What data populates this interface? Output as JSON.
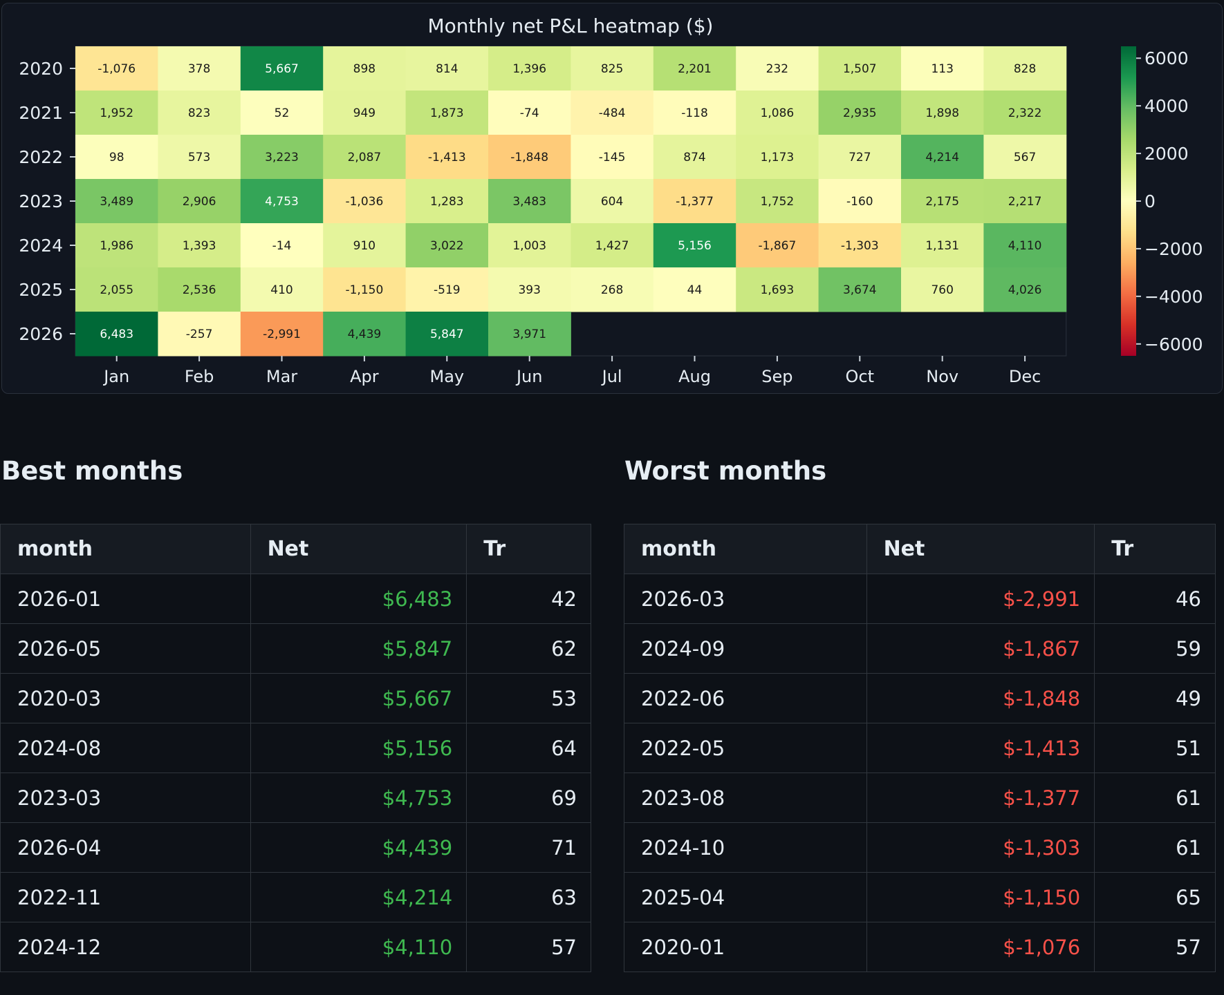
{
  "chart_data": {
    "type": "heatmap",
    "title": "Monthly net P&L heatmap ($)",
    "x_labels": [
      "Jan",
      "Feb",
      "Mar",
      "Apr",
      "May",
      "Jun",
      "Jul",
      "Aug",
      "Sep",
      "Oct",
      "Nov",
      "Dec"
    ],
    "y_labels": [
      "2020",
      "2021",
      "2022",
      "2023",
      "2024",
      "2025",
      "2026"
    ],
    "values": [
      [
        -1076,
        378,
        5667,
        898,
        814,
        1396,
        825,
        2201,
        232,
        1507,
        113,
        828
      ],
      [
        1952,
        823,
        52,
        949,
        1873,
        -74,
        -484,
        -118,
        1086,
        2935,
        1898,
        2322
      ],
      [
        98,
        573,
        3223,
        2087,
        -1413,
        -1848,
        -145,
        874,
        1173,
        727,
        4214,
        567
      ],
      [
        3489,
        2906,
        4753,
        -1036,
        1283,
        3483,
        604,
        -1377,
        1752,
        -160,
        2175,
        2217
      ],
      [
        1986,
        1393,
        -14,
        910,
        3022,
        1003,
        1427,
        5156,
        -1867,
        -1303,
        1131,
        4110
      ],
      [
        2055,
        2536,
        410,
        -1150,
        -519,
        393,
        268,
        44,
        1693,
        3674,
        760,
        4026
      ],
      [
        6483,
        -257,
        -2991,
        4439,
        5847,
        3971,
        null,
        null,
        null,
        null,
        null,
        null
      ]
    ],
    "value_labels": [
      [
        "-1,076",
        "378",
        "5,667",
        "898",
        "814",
        "1,396",
        "825",
        "2,201",
        "232",
        "1,507",
        "113",
        "828"
      ],
      [
        "1,952",
        "823",
        "52",
        "949",
        "1,873",
        "-74",
        "-484",
        "-118",
        "1,086",
        "2,935",
        "1,898",
        "2,322"
      ],
      [
        "98",
        "573",
        "3,223",
        "2,087",
        "-1,413",
        "-1,848",
        "-145",
        "874",
        "1,173",
        "727",
        "4,214",
        "567"
      ],
      [
        "3,489",
        "2,906",
        "4,753",
        "-1,036",
        "1,283",
        "3,483",
        "604",
        "-1,377",
        "1,752",
        "-160",
        "2,175",
        "2,217"
      ],
      [
        "1,986",
        "1,393",
        "-14",
        "910",
        "3,022",
        "1,003",
        "1,427",
        "5,156",
        "-1,867",
        "-1,303",
        "1,131",
        "4,110"
      ],
      [
        "2,055",
        "2,536",
        "410",
        "-1,150",
        "-519",
        "393",
        "268",
        "44",
        "1,693",
        "3,674",
        "760",
        "4,026"
      ],
      [
        "6,483",
        "-257",
        "-2,991",
        "4,439",
        "5,847",
        "3,971",
        "",
        "",
        "",
        "",
        "",
        ""
      ]
    ],
    "colorscale": "RdYlGn",
    "vmin": -6500,
    "vmax": 6500,
    "colorbar_ticks": [
      6000,
      4000,
      2000,
      0,
      -2000,
      -4000,
      -6000
    ],
    "colorbar_labels": [
      "6000",
      "4000",
      "2000",
      "0",
      "−2000",
      "−4000",
      "−6000"
    ],
    "grid": false
  },
  "best": {
    "heading": "Best months",
    "columns": [
      "month",
      "Net",
      "Tr"
    ],
    "rows": [
      {
        "month": "2026-01",
        "net": "$6,483",
        "tr": "42"
      },
      {
        "month": "2026-05",
        "net": "$5,847",
        "tr": "62"
      },
      {
        "month": "2020-03",
        "net": "$5,667",
        "tr": "53"
      },
      {
        "month": "2024-08",
        "net": "$5,156",
        "tr": "64"
      },
      {
        "month": "2023-03",
        "net": "$4,753",
        "tr": "69"
      },
      {
        "month": "2026-04",
        "net": "$4,439",
        "tr": "71"
      },
      {
        "month": "2022-11",
        "net": "$4,214",
        "tr": "63"
      },
      {
        "month": "2024-12",
        "net": "$4,110",
        "tr": "57"
      }
    ]
  },
  "worst": {
    "heading": "Worst months",
    "columns": [
      "month",
      "Net",
      "Tr"
    ],
    "rows": [
      {
        "month": "2026-03",
        "net": "$-2,991",
        "tr": "46"
      },
      {
        "month": "2024-09",
        "net": "$-1,867",
        "tr": "59"
      },
      {
        "month": "2022-06",
        "net": "$-1,848",
        "tr": "49"
      },
      {
        "month": "2022-05",
        "net": "$-1,413",
        "tr": "51"
      },
      {
        "month": "2023-08",
        "net": "$-1,377",
        "tr": "61"
      },
      {
        "month": "2024-10",
        "net": "$-1,303",
        "tr": "61"
      },
      {
        "month": "2025-04",
        "net": "$-1,150",
        "tr": "65"
      },
      {
        "month": "2020-01",
        "net": "$-1,076",
        "tr": "57"
      }
    ]
  },
  "colors": {
    "background": "#0d1117",
    "positive": "#3fb950",
    "negative": "#f85149"
  }
}
